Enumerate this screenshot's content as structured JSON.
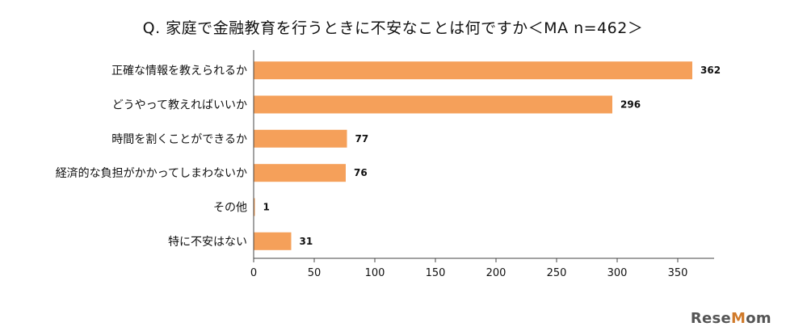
{
  "chart_data": {
    "type": "bar",
    "orientation": "horizontal",
    "title": "Q. 家庭で金融教育を行うときに不安なことは何ですか＜MA n=462＞",
    "categories": [
      "正確な情報を教えられるか",
      "どうやって教えればいいか",
      "時間を割くことができるか",
      "経済的な負担がかかってしまわないか",
      "その他",
      "特に不安はない"
    ],
    "values": [
      362,
      296,
      77,
      76,
      1,
      31
    ],
    "xlim": [
      0,
      380
    ],
    "xticks": [
      0,
      50,
      100,
      150,
      200,
      250,
      300,
      350
    ],
    "bar_color": "#f5a05a",
    "grid": false
  },
  "watermark": {
    "prefix": "Rese",
    "accent": "M",
    "suffix": "om"
  }
}
